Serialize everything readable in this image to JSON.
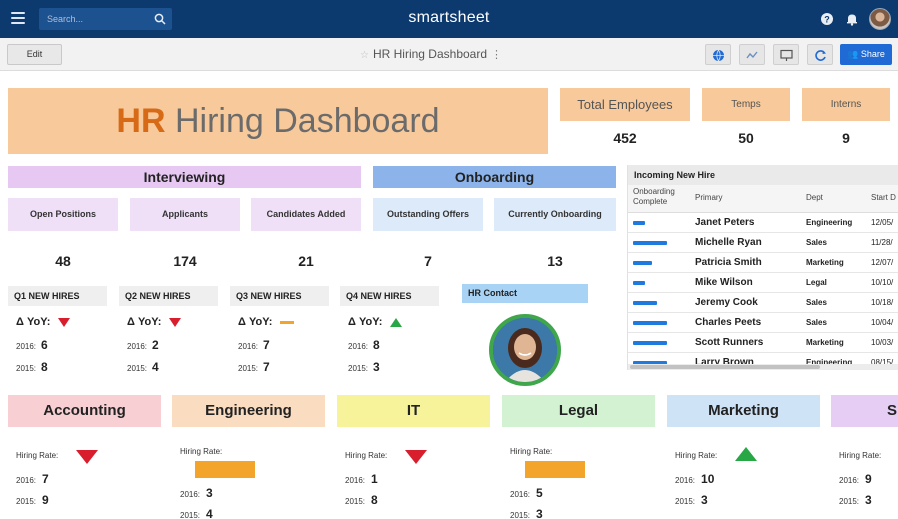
{
  "app": {
    "brand": "smartsheet",
    "search_placeholder": "Search..."
  },
  "toolbar": {
    "edit_label": "Edit",
    "dashboard_title": "HR Hiring Dashboard",
    "share_label": "Share"
  },
  "hero": {
    "accent": "HR",
    "rest": " Hiring Dashboard"
  },
  "totals": [
    {
      "label": "Total Employees",
      "value": "452"
    },
    {
      "label": "Temps",
      "value": "50"
    },
    {
      "label": "Interns",
      "value": "9"
    }
  ],
  "sections": {
    "interviewing": "Interviewing",
    "onboarding": "Onboarding"
  },
  "kpis": [
    {
      "label": "Open Positions",
      "value": "48"
    },
    {
      "label": "Applicants",
      "value": "174"
    },
    {
      "label": "Candidates Added",
      "value": "21"
    },
    {
      "label": "Outstanding Offers",
      "value": "7"
    },
    {
      "label": "Currently Onboarding",
      "value": "13"
    }
  ],
  "quarters": [
    {
      "title": "Q1 NEW HIRES",
      "yoy_label": "Δ YoY:",
      "trend": "down",
      "y2016_label": "2016:",
      "y2016": "6",
      "y2015_label": "2015:",
      "y2015": "8"
    },
    {
      "title": "Q2 NEW HIRES",
      "yoy_label": "Δ YoY:",
      "trend": "down",
      "y2016_label": "2016:",
      "y2016": "2",
      "y2015_label": "2015:",
      "y2015": "4"
    },
    {
      "title": "Q3 NEW HIRES",
      "yoy_label": "Δ YoY:",
      "trend": "flat",
      "y2016_label": "2016:",
      "y2016": "7",
      "y2015_label": "2015:",
      "y2015": "7"
    },
    {
      "title": "Q4 NEW HIRES",
      "yoy_label": "Δ YoY:",
      "trend": "up",
      "y2016_label": "2016:",
      "y2016": "8",
      "y2015_label": "2015:",
      "y2015": "3"
    }
  ],
  "hr_contact": {
    "title": "HR Contact"
  },
  "incoming": {
    "title": "Incoming New Hire",
    "columns": {
      "complete": "Onboarding Complete",
      "primary": "Primary",
      "dept": "Dept",
      "start": "Start D"
    },
    "rows": [
      {
        "complete": 0.25,
        "primary": "Janet Peters",
        "dept": "Engineering",
        "start": "12/05/"
      },
      {
        "complete": 0.7,
        "primary": "Michelle Ryan",
        "dept": "Sales",
        "start": "11/28/"
      },
      {
        "complete": 0.4,
        "primary": "Patricia Smith",
        "dept": "Marketing",
        "start": "12/07/"
      },
      {
        "complete": 0.25,
        "primary": "Mike Wilson",
        "dept": "Legal",
        "start": "10/10/"
      },
      {
        "complete": 0.5,
        "primary": "Jeremy Cook",
        "dept": "Sales",
        "start": "10/18/"
      },
      {
        "complete": 0.7,
        "primary": "Charles Peets",
        "dept": "Sales",
        "start": "10/04/"
      },
      {
        "complete": 0.7,
        "primary": "Scott Runners",
        "dept": "Marketing",
        "start": "10/03/"
      },
      {
        "complete": 0.7,
        "primary": "Larry Brown",
        "dept": "Engineering",
        "start": "08/15/"
      }
    ]
  },
  "departments": [
    {
      "name": "Accounting",
      "color": "#f8d0d4",
      "rate_label": "Hiring Rate:",
      "trend": "down",
      "y2016_label": "2016:",
      "y2016": "7",
      "y2015_label": "2015:",
      "y2015": "9"
    },
    {
      "name": "Engineering",
      "color": "#fadcc0",
      "rate_label": "Hiring Rate:",
      "trend": "flat",
      "y2016_label": "2016:",
      "y2016": "3",
      "y2015_label": "2015:",
      "y2015": "4"
    },
    {
      "name": "IT",
      "color": "#f7f39b",
      "rate_label": "Hiring Rate:",
      "trend": "down",
      "y2016_label": "2016:",
      "y2016": "1",
      "y2015_label": "2015:",
      "y2015": "8"
    },
    {
      "name": "Legal",
      "color": "#d2f2d2",
      "rate_label": "Hiring Rate:",
      "trend": "flat",
      "y2016_label": "2016:",
      "y2016": "5",
      "y2015_label": "2015:",
      "y2015": "3"
    },
    {
      "name": "Marketing",
      "color": "#cfe3f6",
      "rate_label": "Hiring Rate:",
      "trend": "up",
      "y2016_label": "2016:",
      "y2016": "10",
      "y2015_label": "2015:",
      "y2015": "3"
    },
    {
      "name": "S",
      "color": "#e5cdf3",
      "rate_label": "Hiring Rate:",
      "trend": "none",
      "y2016_label": "2016:",
      "y2016": "9",
      "y2015_label": "2015:",
      "y2015": "3"
    }
  ],
  "colors": {
    "topbar": "#0c3a6e",
    "orange_widget": "#f8c99a",
    "interviewing": "#e6c8f3",
    "onboarding": "#8cb4ea",
    "kpi_interview": "#efe0f8",
    "kpi_onboard": "#ddeaf9",
    "trend_down": "#d81e2c",
    "trend_up": "#27a745",
    "trend_flat": "#f2a52a"
  }
}
